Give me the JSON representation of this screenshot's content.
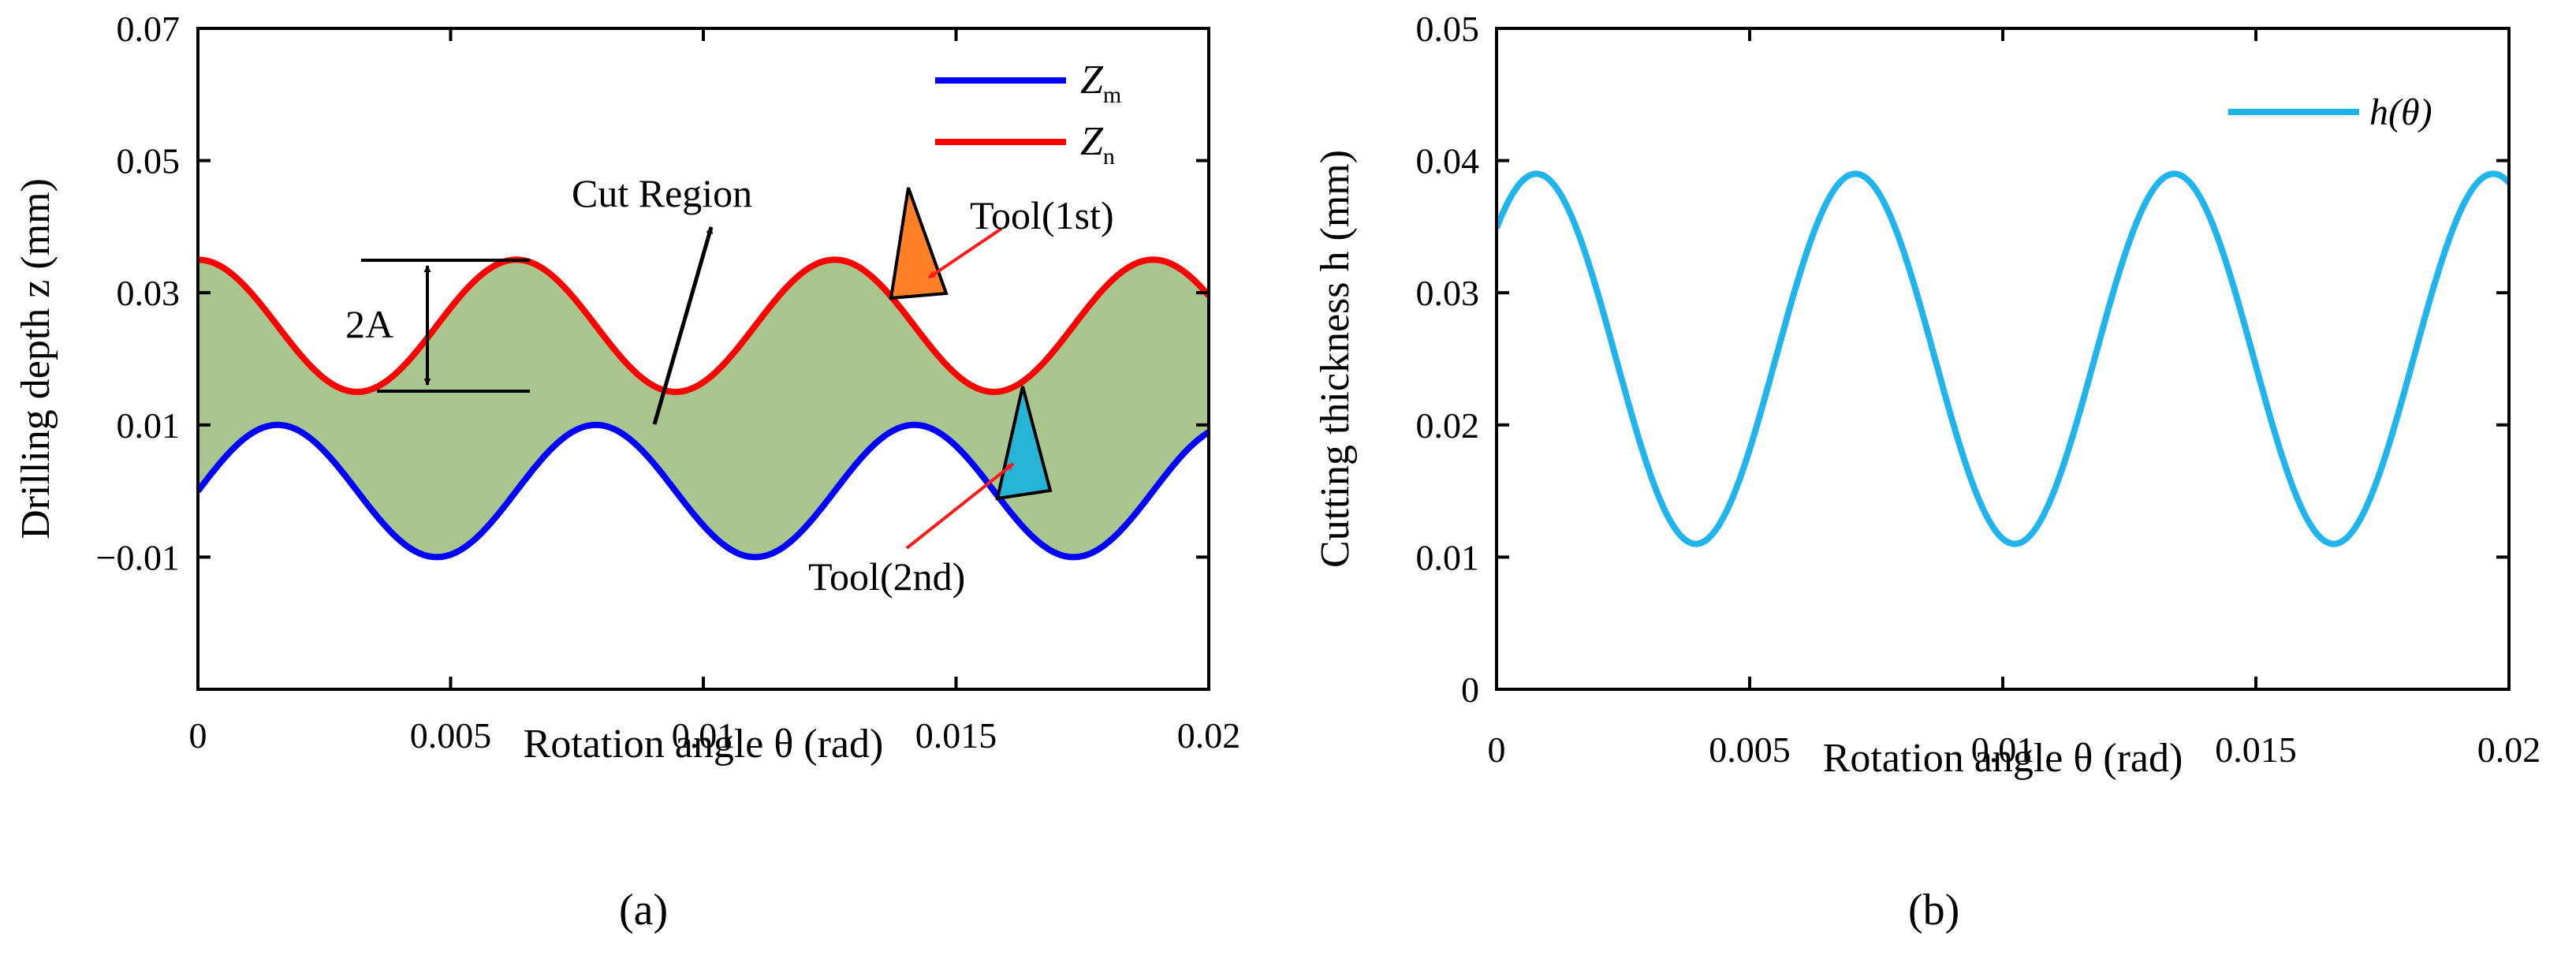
{
  "chart_data": [
    {
      "panel": "a",
      "caption": "(a)",
      "type": "line",
      "xlabel": "Rotation angle θ (rad)",
      "ylabel": "Drilling depth z (mm)",
      "xlim": [
        0,
        0.02
      ],
      "ylim": [
        -0.03,
        0.07
      ],
      "xticks": [
        0,
        0.005,
        0.01,
        0.015,
        0.02
      ],
      "xtick_labels": [
        "0",
        "0.005",
        "0.01",
        "0.015",
        "0.02"
      ],
      "yticks": [
        -0.01,
        0.01,
        0.03,
        0.05,
        0.07
      ],
      "ytick_labels": [
        "−0.01",
        "0.01",
        "0.03",
        "0.05",
        "0.07"
      ],
      "series": [
        {
          "name": "Z_m",
          "label_main": "Z",
          "label_sub": "m",
          "color": "#0000ff",
          "offset": 0.0,
          "amplitude": 0.01,
          "period": 0.0063,
          "phase": 0.0
        },
        {
          "name": "Z_n",
          "label_main": "Z",
          "label_sub": "n",
          "color": "#ff0000",
          "offset": 0.025,
          "amplitude": 0.01,
          "period": 0.0063,
          "phase": 1.5708
        }
      ],
      "fill": {
        "name": "Cut Region",
        "between": [
          "Z_m",
          "Z_n"
        ],
        "color": "#a9c68e"
      },
      "annotations": {
        "cut_region": "Cut Region",
        "amplitude": "2A",
        "tool1": "Tool(1st)",
        "tool2": "Tool(2nd)"
      },
      "legend": "top-right"
    },
    {
      "panel": "b",
      "caption": "(b)",
      "type": "line",
      "xlabel": "Rotation angle θ (rad)",
      "ylabel": "Cutting thickness  h (mm)",
      "xlim": [
        0,
        0.02
      ],
      "ylim": [
        0,
        0.05
      ],
      "xticks": [
        0,
        0.005,
        0.01,
        0.015,
        0.02
      ],
      "xtick_labels": [
        "0",
        "0.005",
        "0.01",
        "0.015",
        "0.02"
      ],
      "yticks": [
        0,
        0.01,
        0.02,
        0.03,
        0.04,
        0.05
      ],
      "ytick_labels": [
        "0",
        "0.01",
        "0.02",
        "0.03",
        "0.04",
        "0.05"
      ],
      "series": [
        {
          "name": "h(θ)",
          "color": "#1fb4ec",
          "offset": 0.025,
          "amplitude": 0.014,
          "period": 0.0063,
          "phase": 0.7854
        }
      ],
      "legend": "top-right"
    }
  ]
}
